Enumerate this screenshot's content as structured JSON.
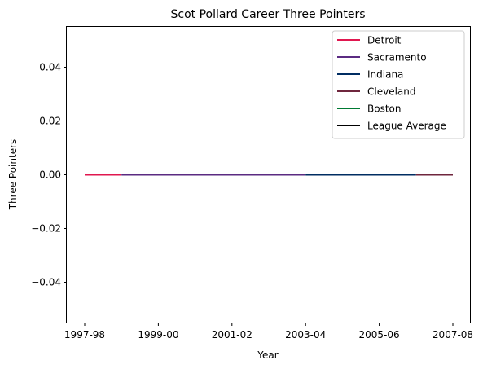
{
  "chart_data": {
    "type": "line",
    "title": "Scot Pollard Career Three Pointers",
    "xlabel": "Year",
    "ylabel": "Three Pointers",
    "x_categories": [
      "1997-98",
      "1998-99",
      "1999-00",
      "2000-01",
      "2001-02",
      "2002-03",
      "2003-04",
      "2004-05",
      "2005-06",
      "2006-07",
      "2007-08"
    ],
    "xtick_labels": [
      "1997-98",
      "1999-00",
      "2001-02",
      "2003-04",
      "2005-06",
      "2007-08"
    ],
    "ylim": [
      -0.055,
      0.055
    ],
    "yticks": [
      -0.04,
      -0.02,
      0.0,
      0.02,
      0.04
    ],
    "ytick_labels": [
      "−0.04",
      "−0.02",
      "0.00",
      "0.02",
      "0.04"
    ],
    "grid": false,
    "legend_position": "top-right",
    "series": [
      {
        "name": "Detroit",
        "color": "#e0174f",
        "x": [
          "1997-98",
          "1998-99"
        ],
        "y": [
          0,
          0
        ]
      },
      {
        "name": "Sacramento",
        "color": "#5b2b82",
        "x": [
          "1998-99",
          "1999-00",
          "2000-01",
          "2001-02",
          "2002-03",
          "2003-04"
        ],
        "y": [
          0,
          0,
          0,
          0,
          0,
          0
        ]
      },
      {
        "name": "Indiana",
        "color": "#002d62",
        "x": [
          "2003-04",
          "2004-05",
          "2005-06",
          "2006-07"
        ],
        "y": [
          0,
          0,
          0,
          0
        ]
      },
      {
        "name": "Cleveland",
        "color": "#6f263d",
        "x": [
          "2006-07",
          "2007-08"
        ],
        "y": [
          0,
          0
        ]
      },
      {
        "name": "Boston",
        "color": "#007a33",
        "x": [],
        "y": []
      },
      {
        "name": "League Average",
        "color": "#000000",
        "x": [],
        "y": []
      }
    ]
  }
}
